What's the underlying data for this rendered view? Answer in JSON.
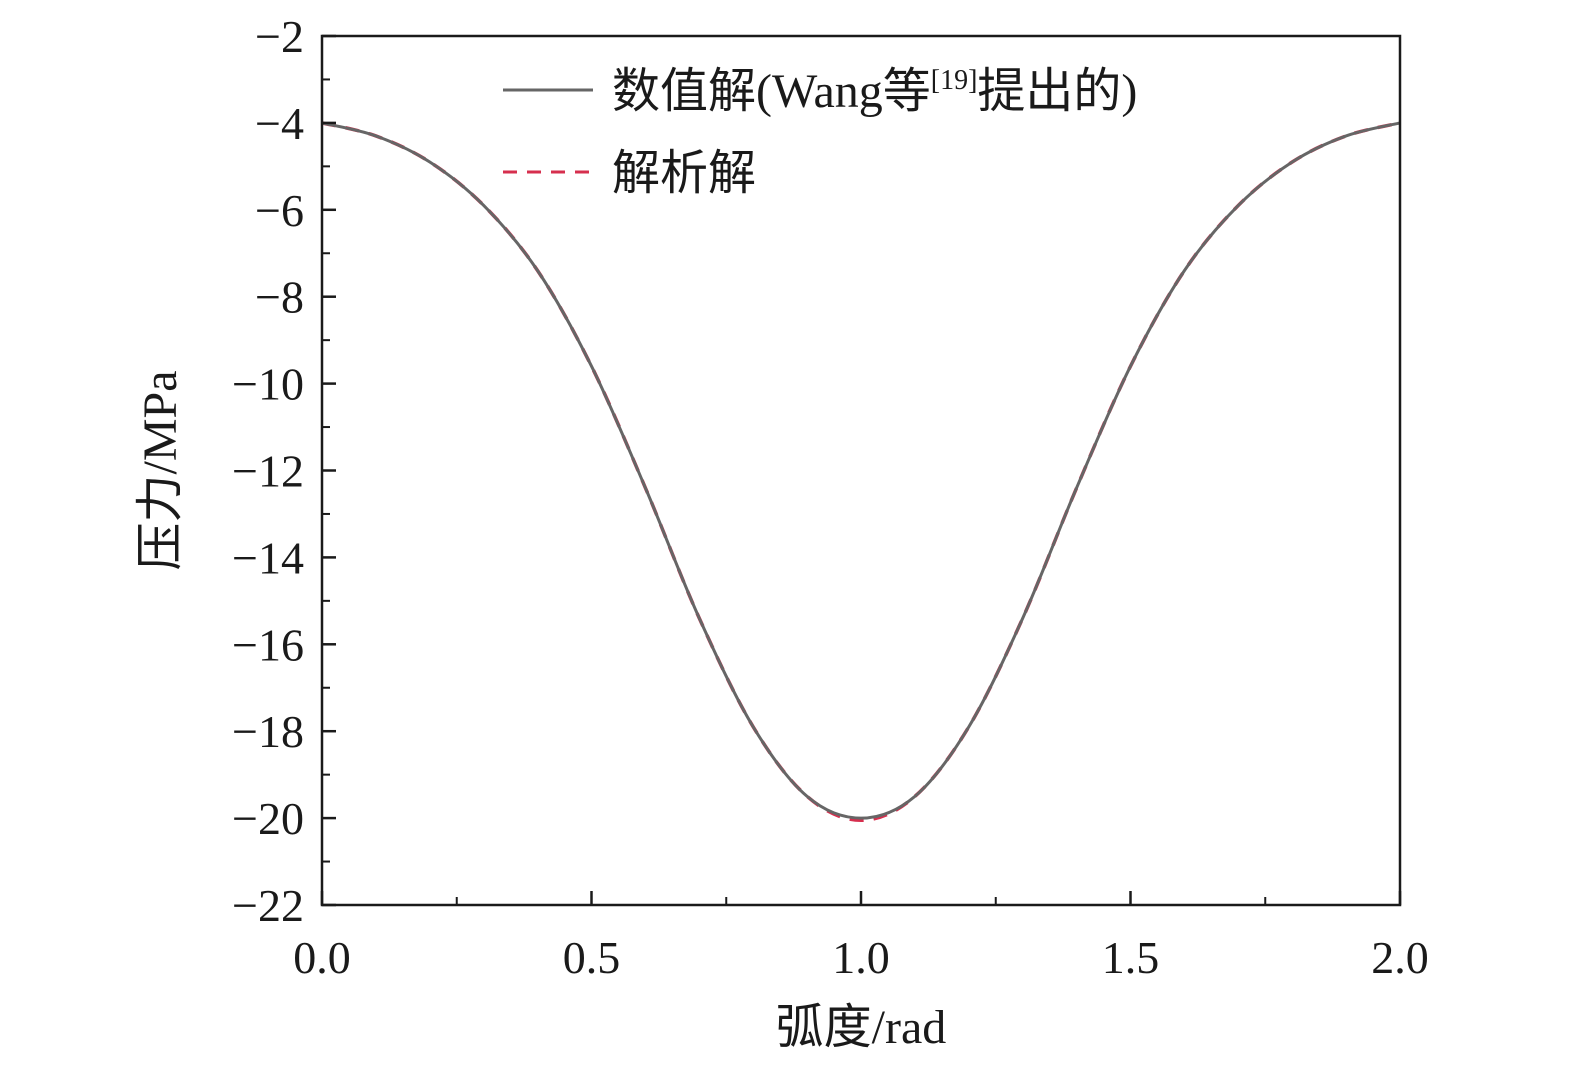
{
  "chart_data": {
    "type": "line",
    "xlabel": "弧度/rad",
    "ylabel": "压力/MPa",
    "xlim": [
      0.0,
      2.0
    ],
    "ylim": [
      -22,
      -2
    ],
    "x_ticks": [
      "0.0",
      "0.5",
      "1.0",
      "1.5",
      "2.0"
    ],
    "y_ticks": [
      "−2",
      "−4",
      "−6",
      "−8",
      "−10",
      "−12",
      "−14",
      "−16",
      "−18",
      "−20",
      "−22"
    ],
    "grid": false,
    "legend_position": "top-right",
    "series": [
      {
        "name": "数值解(Wang等[19]提出的)",
        "name_main": "数值解(Wang等",
        "name_sup": "[19]",
        "name_tail": "提出的)",
        "color": "#666666",
        "style": "solid",
        "x": [
          0.0,
          0.1,
          0.2,
          0.3,
          0.4,
          0.5,
          0.6,
          0.7,
          0.8,
          0.9,
          1.0,
          1.1,
          1.2,
          1.3,
          1.4,
          1.5,
          1.6,
          1.7,
          1.8,
          1.9,
          2.0
        ],
        "y": [
          -4.0,
          -4.3,
          -4.9,
          -5.9,
          -7.4,
          -9.6,
          -12.4,
          -15.4,
          -17.9,
          -19.5,
          -20.0,
          -19.5,
          -17.9,
          -15.4,
          -12.4,
          -9.6,
          -7.4,
          -5.9,
          -4.9,
          -4.3,
          -4.0
        ]
      },
      {
        "name": "解析解",
        "color": "#d62f4e",
        "style": "dashed",
        "x": [
          0.0,
          0.1,
          0.2,
          0.3,
          0.4,
          0.5,
          0.6,
          0.7,
          0.8,
          0.9,
          1.0,
          1.1,
          1.2,
          1.3,
          1.4,
          1.5,
          1.6,
          1.7,
          1.8,
          1.9,
          2.0
        ],
        "y": [
          -4.0,
          -4.3,
          -4.9,
          -5.9,
          -7.4,
          -9.6,
          -12.4,
          -15.4,
          -17.9,
          -19.5,
          -20.05,
          -19.5,
          -17.9,
          -15.4,
          -12.4,
          -9.6,
          -7.4,
          -5.9,
          -4.9,
          -4.3,
          -4.0
        ]
      }
    ]
  }
}
